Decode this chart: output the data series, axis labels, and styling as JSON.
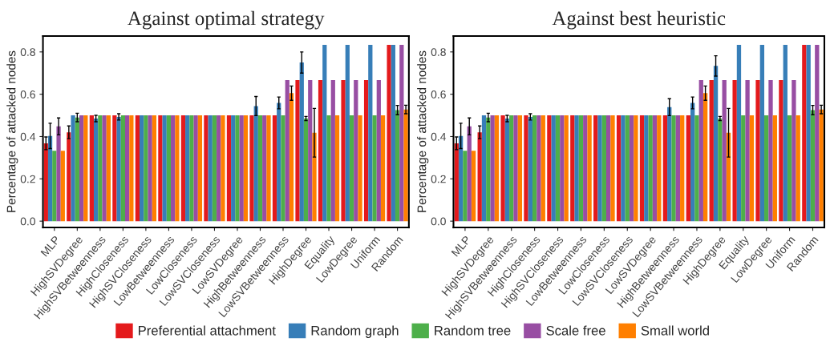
{
  "chart_data": [
    {
      "type": "bar",
      "title": "Against optimal strategy",
      "ylabel": "Percentage of attacked nodes",
      "categories": [
        "MLP",
        "HighSVDegree",
        "HighSVBetweenness",
        "HighCloseness",
        "HighSVCloseness",
        "LowBetweenness",
        "LowCloseness",
        "LowSVCloseness",
        "LowSVDegree",
        "HighBetweenness",
        "LowSVBetweenness",
        "HighDegree",
        "Equality",
        "LowDegree",
        "Uniform",
        "Random"
      ],
      "series": [
        {
          "name": "Preferential attachment",
          "color": "#e41a1c",
          "values": [
            0.368,
            0.42,
            0.5,
            0.5,
            0.5,
            0.5,
            0.5,
            0.5,
            0.5,
            0.5,
            0.5,
            0.667,
            0.667,
            0.667,
            0.667,
            0.833
          ],
          "errors": [
            0.03,
            0.03,
            null,
            null,
            null,
            null,
            null,
            null,
            null,
            null,
            null,
            null,
            null,
            null,
            null,
            null
          ]
        },
        {
          "name": "Random graph",
          "color": "#377eb8",
          "values": [
            0.403,
            0.5,
            0.485,
            0.493,
            0.5,
            0.5,
            0.5,
            0.5,
            0.5,
            0.544,
            0.559,
            0.75,
            0.833,
            0.833,
            0.833,
            0.833
          ],
          "errors": [
            0.06,
            null,
            0.015,
            0.015,
            null,
            null,
            null,
            null,
            null,
            0.045,
            0.028,
            0.05,
            null,
            null,
            null,
            null
          ]
        },
        {
          "name": "Random tree",
          "color": "#4daf4a",
          "values": [
            0.333,
            0.49,
            0.5,
            0.5,
            0.5,
            0.5,
            0.5,
            0.5,
            0.5,
            0.5,
            0.5,
            0.485,
            0.5,
            0.5,
            0.5,
            0.525
          ],
          "errors": [
            null,
            0.02,
            null,
            null,
            null,
            null,
            null,
            null,
            null,
            null,
            null,
            0.01,
            null,
            null,
            null,
            0.022
          ]
        },
        {
          "name": "Scale free",
          "color": "#984ea3",
          "values": [
            0.448,
            0.5,
            0.5,
            0.5,
            0.5,
            0.5,
            0.5,
            0.5,
            0.5,
            0.5,
            0.667,
            0.667,
            0.667,
            0.667,
            0.667,
            0.833
          ],
          "errors": [
            0.04,
            null,
            null,
            null,
            null,
            null,
            null,
            null,
            null,
            null,
            null,
            null,
            null,
            null,
            null,
            null
          ]
        },
        {
          "name": "Small world",
          "color": "#ff7f00",
          "values": [
            0.333,
            0.5,
            0.5,
            0.5,
            0.5,
            0.5,
            0.5,
            0.5,
            0.5,
            0.5,
            0.605,
            0.418,
            0.5,
            0.5,
            0.5,
            0.528
          ],
          "errors": [
            null,
            null,
            null,
            null,
            null,
            null,
            null,
            null,
            null,
            null,
            0.034,
            0.115,
            null,
            null,
            null,
            0.02
          ]
        }
      ],
      "ylim": [
        -0.03,
        0.875
      ],
      "yticks": [
        {
          "value": 0,
          "label": "0.0"
        },
        {
          "value": 0.2,
          "label": "0.2"
        },
        {
          "value": 0.4,
          "label": "0.4"
        },
        {
          "value": 0.6,
          "label": "0.6"
        },
        {
          "value": 0.8,
          "label": "0.8"
        }
      ],
      "grid": false,
      "legend": "bottom"
    },
    {
      "type": "bar",
      "title": "Against best heuristic",
      "ylabel": "Percentage of attacked nodes",
      "categories": [
        "MLP",
        "HighSVDegree",
        "HighSVBetweenness",
        "HighCloseness",
        "HighSVCloseness",
        "LowBetweenness",
        "LowCloseness",
        "LowSVCloseness",
        "LowSVDegree",
        "HighBetweenness",
        "LowSVBetweenness",
        "HighDegree",
        "Equality",
        "LowDegree",
        "Uniform",
        "Random"
      ],
      "series": [
        {
          "color": "#e41a1c",
          "values": [
            0.368,
            0.42,
            0.5,
            0.5,
            0.5,
            0.5,
            0.5,
            0.5,
            0.5,
            0.5,
            0.5,
            0.667,
            0.667,
            0.667,
            0.667,
            0.833
          ],
          "errors": [
            0.03,
            0.03,
            null,
            null,
            null,
            null,
            null,
            null,
            null,
            null,
            null,
            null,
            null,
            null,
            null,
            null
          ]
        },
        {
          "color": "#377eb8",
          "values": [
            0.403,
            0.5,
            0.485,
            0.493,
            0.5,
            0.5,
            0.5,
            0.5,
            0.5,
            0.539,
            0.559,
            0.734,
            0.833,
            0.833,
            0.833,
            0.833
          ],
          "errors": [
            0.06,
            null,
            0.015,
            0.015,
            null,
            null,
            null,
            null,
            null,
            0.04,
            0.028,
            0.048,
            null,
            null,
            null,
            null
          ]
        },
        {
          "color": "#4daf4a",
          "values": [
            0.333,
            0.49,
            0.5,
            0.5,
            0.5,
            0.5,
            0.5,
            0.5,
            0.5,
            0.5,
            0.5,
            0.485,
            0.5,
            0.5,
            0.5,
            0.525
          ],
          "errors": [
            null,
            0.02,
            null,
            null,
            null,
            null,
            null,
            null,
            null,
            null,
            null,
            0.01,
            null,
            null,
            null,
            0.022
          ]
        },
        {
          "color": "#984ea3",
          "values": [
            0.448,
            0.5,
            0.5,
            0.5,
            0.5,
            0.5,
            0.5,
            0.5,
            0.5,
            0.5,
            0.667,
            0.667,
            0.667,
            0.667,
            0.667,
            0.833
          ],
          "errors": [
            0.04,
            null,
            null,
            null,
            null,
            null,
            null,
            null,
            null,
            null,
            null,
            null,
            null,
            null,
            null,
            null
          ]
        },
        {
          "color": "#ff7f00",
          "values": [
            0.333,
            0.5,
            0.5,
            0.5,
            0.5,
            0.5,
            0.5,
            0.5,
            0.5,
            0.5,
            0.605,
            0.418,
            0.5,
            0.5,
            0.5,
            0.528
          ],
          "errors": [
            null,
            null,
            null,
            null,
            null,
            null,
            null,
            null,
            null,
            null,
            0.034,
            0.115,
            null,
            null,
            null,
            0.02
          ]
        }
      ],
      "ylim": [
        -0.03,
        0.875
      ],
      "yticks": [
        {
          "value": 0,
          "label": "0.0"
        },
        {
          "value": 0.2,
          "label": "0.2"
        },
        {
          "value": 0.4,
          "label": "0.4"
        },
        {
          "value": 0.6,
          "label": "0.6"
        },
        {
          "value": 0.8,
          "label": "0.8"
        }
      ],
      "grid": false
    }
  ]
}
